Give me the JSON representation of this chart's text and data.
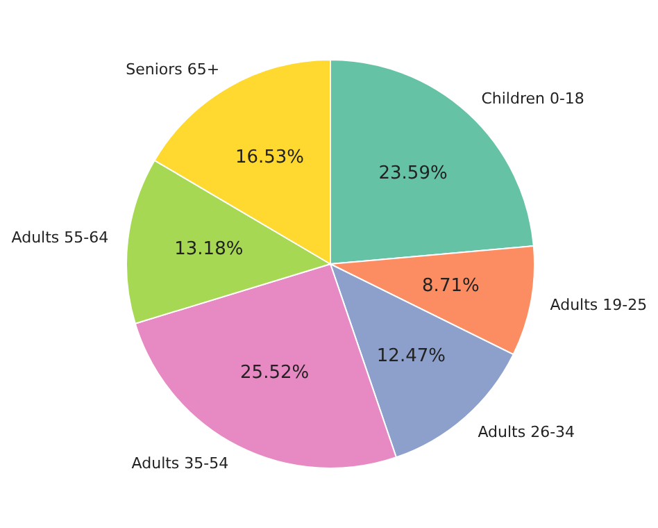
{
  "chart_data": {
    "type": "pie",
    "categories": [
      "Children 0-18",
      "Adults 19-25",
      "Adults 26-34",
      "Adults 35-54",
      "Adults 55-64",
      "Seniors 65+"
    ],
    "values": [
      23.59,
      8.71,
      12.47,
      25.52,
      13.18,
      16.53
    ],
    "colors": [
      "#66c2a5",
      "#fc8d62",
      "#8da0cb",
      "#e78ac3",
      "#a6d854",
      "#ffd92f"
    ],
    "value_labels": [
      "23.59%",
      "8.71%",
      "12.47%",
      "25.52%",
      "13.18%",
      "16.53%"
    ],
    "legend": false
  }
}
